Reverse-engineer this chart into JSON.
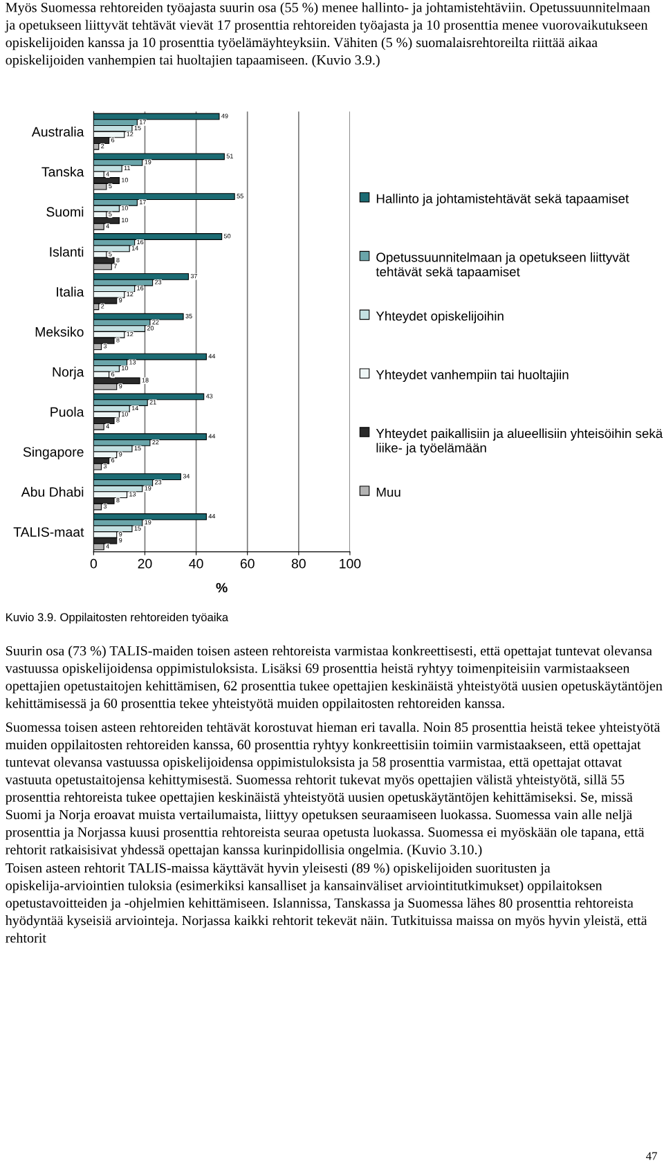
{
  "chart_data": {
    "type": "bar",
    "orientation": "horizontal",
    "categories": [
      "Australia",
      "Tanska",
      "Suomi",
      "Islanti",
      "Italia",
      "Meksiko",
      "Norja",
      "Puola",
      "Singapore",
      "Abu Dhabi",
      "TALIS-maat"
    ],
    "series": [
      {
        "name": "Hallinto ja johtamistehtävät sekä tapaamiset",
        "color": "#1c6b73",
        "values": [
          49,
          51,
          55,
          50,
          37,
          35,
          44,
          43,
          44,
          34,
          44
        ]
      },
      {
        "name": "Opetussuunnitelmaan ja opetukseen liittyvät tehtävät sekä tapaamiset",
        "color": "#6aa5aa",
        "values": [
          17,
          19,
          17,
          16,
          23,
          22,
          13,
          21,
          22,
          23,
          19
        ]
      },
      {
        "name": "Yhteydet opiskelijoihin",
        "color": "#c4e0e2",
        "values": [
          15,
          11,
          10,
          14,
          16,
          20,
          10,
          14,
          15,
          19,
          15
        ]
      },
      {
        "name": "Yhteydet vanhempiin tai huoltajiin",
        "color": "#eef6f6",
        "values": [
          12,
          4,
          5,
          5,
          12,
          12,
          6,
          10,
          9,
          13,
          9
        ]
      },
      {
        "name": "Yhteydet paikallisiin ja alueellisiin yhteisöihin sekä liike- ja työelämään",
        "color": "#2a2a2a",
        "values": [
          6,
          10,
          10,
          8,
          9,
          8,
          18,
          8,
          6,
          8,
          9
        ]
      },
      {
        "name": "Muu",
        "color": "#b3b3b3",
        "values": [
          2,
          5,
          4,
          7,
          2,
          3,
          9,
          4,
          3,
          3,
          4
        ]
      }
    ],
    "xlim": [
      0,
      100
    ],
    "xticks": [
      0,
      20,
      40,
      60,
      80,
      100
    ],
    "xlabel": "%",
    "grid": "x",
    "legend": "right",
    "data_labels": true,
    "annotations": [
      "Myös Suomessa rehtoreiden työajasta suurin osa (55 %) menee hallinto- ja johtamistehtäviin. Opetussuunnitelmaan ja opetukseen liittyvät tehtävät vievät 17 prosenttia rehtoreiden työajasta ja 10 prosenttia menee vuorovaikutukseen opiskelijoiden kanssa ja 10 prosenttia työelämäyhteyksiin. Vähiten (5 %) suomalaisrehtoreilta riittää aikaa opiskelijoiden vanhempien tai huoltajien tapaamiseen. (Kuvio 3.9.)",
      "Kuvio 3.9. Oppilaitosten rehtoreiden työaika",
      "Suurin osa (73 %) TALIS-maiden toisen asteen rehtoreista varmistaa konkreettisesti, että opettajat tuntevat olevansa vastuussa opiskelijoidensa oppimistuloksista. Lisäksi 69 prosenttia heistä ryhtyy toimenpiteisiin varmistaakseen opettajien opetustaitojen kehittämisen, 62 prosenttia tukee opettajien keskinäistä yhteistyötä uusien opetuskäytäntöjen kehittämisessä ja 60 prosenttia tekee yhteistyötä muiden oppilaitosten rehtoreiden kanssa.",
      "Suomessa toisen asteen rehtoreiden tehtävät korostuvat hieman eri tavalla. Noin 85 prosenttia heistä tekee yhteistyötä muiden oppilaitosten rehtoreiden kanssa, 60 prosenttia ryhtyy konkreettisiin toimiin varmistaakseen, että opettajat tuntevat olevansa vastuussa opiskelijoidensa oppimistuloksista ja 58 prosenttia varmistaa, että opettajat ottavat vastuuta opetustaitojensa kehittymisestä. Suomessa rehtorit tukevat myös opettajien välistä yhteistyötä, sillä 55 prosenttia rehtoreista tukee opettajien keskinäistä yhteistyötä uusien opetuskäytäntöjen kehittämiseksi. Se, missä Suomi ja Norja eroavat muista vertailumaista, liittyy opetuksen seuraamiseen luokassa. Suomessa vain alle neljä prosenttia ja Norjassa kuusi prosenttia rehtoreista seuraa opetusta luokassa. Suomessa ei myöskään ole tapana, että rehtorit ratkaisisivat yhdessä opettajan kanssa kurinpidollisia ongelmia. (Kuvio 3.10.)",
      "Toisen asteen rehtorit TALIS-maissa käyttävät hyvin yleisesti (89 %) opiskelijoiden suoritusten ja opiskelija-arviointien tuloksia (esimerkiksi kansalliset ja kansainväliset arviointitutkimukset) oppilaitoksen opetustavoitteiden ja -ohjelmien kehittämiseen. Islannissa, Tanskassa ja Suomessa lähes 80 prosenttia rehtoreista hyödyntää kyseisiä arviointeja. Norjassa kaikki rehtorit tekevät näin. Tutkituissa maissa on myös hyvin yleistä, että rehtorit",
      "47"
    ]
  }
}
